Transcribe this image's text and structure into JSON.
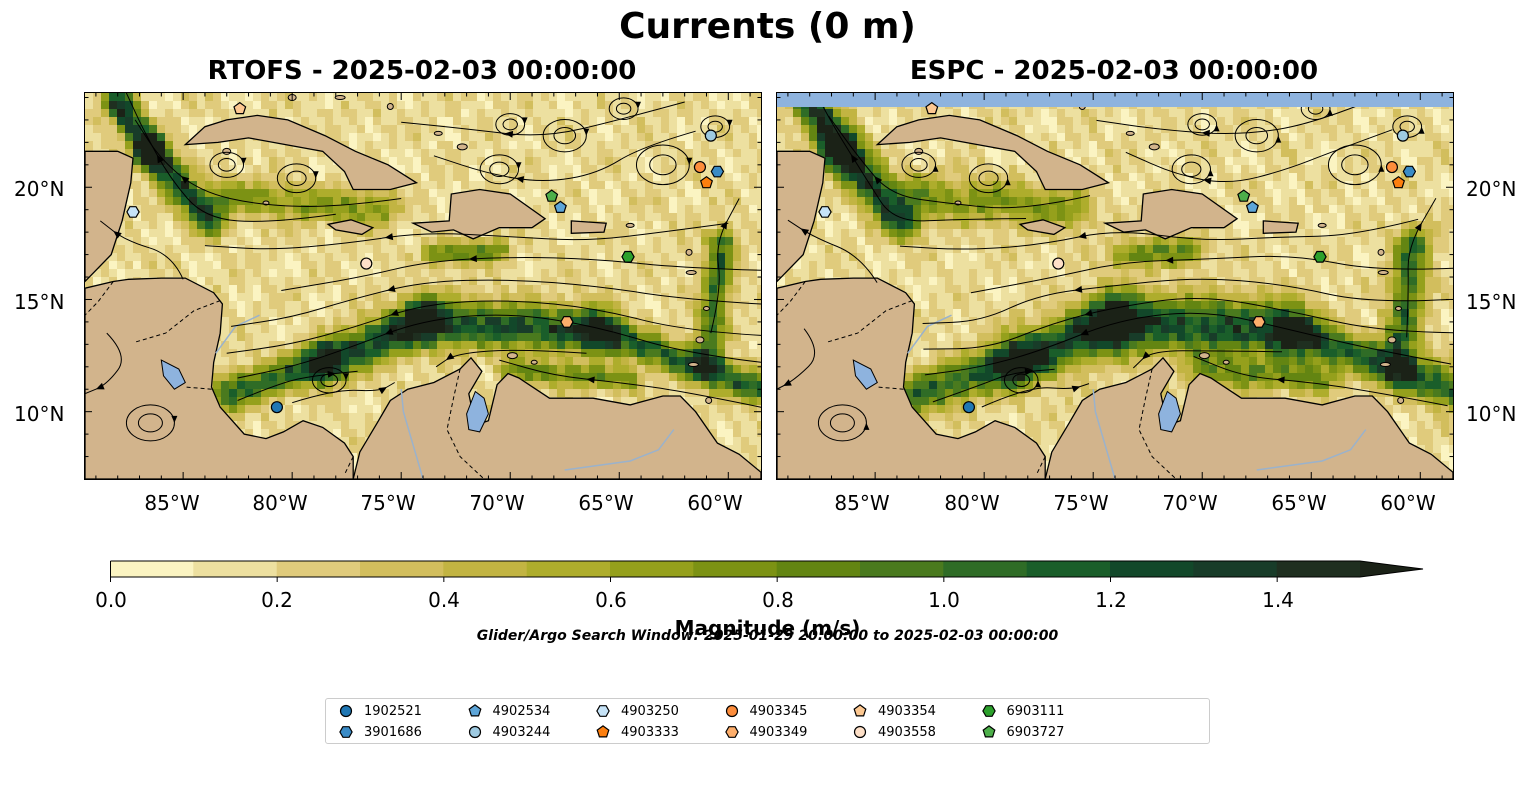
{
  "figure": {
    "title": "Currents (0 m)",
    "panels": [
      {
        "title": "RTOFS - 2025-02-03 00:00:00"
      },
      {
        "title": "ESPC - 2025-02-03 00:00:00"
      }
    ],
    "lat_labels": [
      "20°N",
      "15°N",
      "10°N"
    ],
    "lon_labels": [
      "85°W",
      "80°W",
      "75°W",
      "70°W",
      "65°W",
      "60°W"
    ],
    "note": "Glider/Argo Search Window: 2025-01-29 20:00:00 to 2025-02-03 00:00:00"
  },
  "colorbar": {
    "label": "Magnitude (m/s)",
    "ticks": [
      "0.0",
      "0.2",
      "0.4",
      "0.6",
      "0.8",
      "1.0",
      "1.2",
      "1.4"
    ],
    "levels": [
      0.0,
      0.1,
      0.2,
      0.3,
      0.4,
      0.5,
      0.6,
      0.7,
      0.8,
      0.9,
      1.0,
      1.1,
      1.2,
      1.3,
      1.4,
      1.5
    ],
    "colors": [
      "#fbf4c2",
      "#ede0a0",
      "#e0cb7c",
      "#d2be5d",
      "#c2b442",
      "#aead2c",
      "#95a01c",
      "#7c9214",
      "#638512",
      "#4a7a1e",
      "#2f6c26",
      "#1a5e2a",
      "#12482a",
      "#183c29",
      "#1f2f20",
      "#1b2217"
    ],
    "extend": "max"
  },
  "map_colors": {
    "land": "#d2b48c",
    "water_background": "#eedc92",
    "lakes": "#8eb3de",
    "rivers": "#9ab2cc",
    "streamlines": "#000000"
  },
  "floats": [
    {
      "id": "1902521",
      "marker": "circle",
      "color": "#1f77b4",
      "lon": -80.7,
      "lat": 10.2
    },
    {
      "id": "3901686",
      "marker": "hexagon",
      "color": "#3a8bc6",
      "lon": -60.5,
      "lat": 20.7
    },
    {
      "id": "4902534",
      "marker": "pentagon",
      "color": "#5da5d8",
      "lon": -67.7,
      "lat": 19.1
    },
    {
      "id": "4903244",
      "marker": "circle",
      "color": "#9ecae1",
      "lon": -60.8,
      "lat": 22.3
    },
    {
      "id": "4903250",
      "marker": "hexagon",
      "color": "#c6e3f7",
      "lon": -87.3,
      "lat": 18.9
    },
    {
      "id": "4903333",
      "marker": "pentagon",
      "color": "#fd7f0f",
      "lon": -61.0,
      "lat": 20.2
    },
    {
      "id": "4903345",
      "marker": "circle",
      "color": "#fd8d3c",
      "lon": -61.3,
      "lat": 20.9
    },
    {
      "id": "4903349",
      "marker": "hexagon",
      "color": "#fdae6b",
      "lon": -67.4,
      "lat": 14.0
    },
    {
      "id": "4903354",
      "marker": "pentagon",
      "color": "#fdc891",
      "lon": -82.4,
      "lat": 23.5
    },
    {
      "id": "4903558",
      "marker": "circle",
      "color": "#fee0c8",
      "lon": -76.6,
      "lat": 16.6
    },
    {
      "id": "6903111",
      "marker": "hexagon",
      "color": "#2ca02c",
      "lon": -64.6,
      "lat": 16.9
    },
    {
      "id": "6903727",
      "marker": "pentagon",
      "color": "#4daf4a",
      "lon": -68.1,
      "lat": 19.6
    }
  ]
}
